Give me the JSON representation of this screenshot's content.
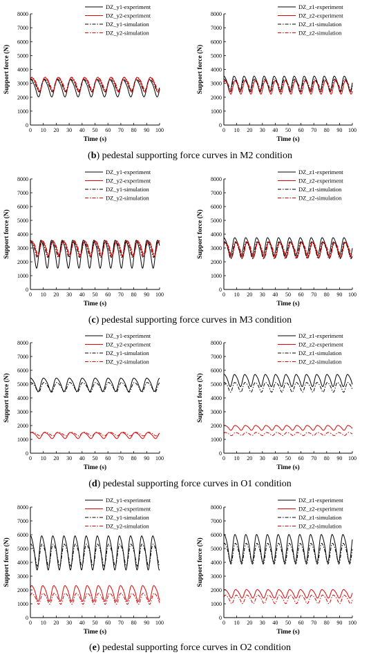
{
  "chart_data": [
    {
      "type": "line",
      "panel": "b-y",
      "ylabel": "Support force (N)",
      "xlabel": "Time (s)",
      "xlim": [
        0,
        100
      ],
      "ylim": [
        0,
        8000
      ],
      "xticks": [
        0,
        10,
        20,
        30,
        40,
        50,
        60,
        70,
        80,
        90,
        100
      ],
      "yticks": [
        0,
        1000,
        2000,
        3000,
        4000,
        5000,
        6000,
        7000,
        8000
      ],
      "legend_position": "top-right",
      "series": [
        {
          "name": "DZ_y1-experiment",
          "color": "#000000",
          "dash": "solid",
          "mean": 2700,
          "amp": 700,
          "period": 10.2,
          "phase": 1.0
        },
        {
          "name": "DZ_y2-experiment",
          "color": "#e00000",
          "dash": "solid",
          "mean": 2950,
          "amp": 600,
          "period": 10.2,
          "phase": 0.6
        },
        {
          "name": "DZ_y1-simulation",
          "color": "#000000",
          "dash": "dashdot",
          "mean": 2900,
          "amp": 500,
          "period": 10.2,
          "phase": 0.8
        },
        {
          "name": "DZ_y2-simulation",
          "color": "#e00000",
          "dash": "dashdot",
          "mean": 3000,
          "amp": 550,
          "period": 10.2,
          "phase": 0.4
        }
      ]
    },
    {
      "type": "line",
      "panel": "b-z",
      "ylabel": "Support force (N)",
      "xlabel": "Time (s)",
      "xlim": [
        0,
        100
      ],
      "ylim": [
        0,
        8000
      ],
      "xticks": [
        0,
        10,
        20,
        30,
        40,
        50,
        60,
        70,
        80,
        90,
        100
      ],
      "yticks": [
        0,
        1000,
        2000,
        3000,
        4000,
        5000,
        6000,
        7000,
        8000
      ],
      "legend_position": "top-right",
      "series": [
        {
          "name": "DZ_z1-experiment",
          "color": "#000000",
          "dash": "solid",
          "mean": 3000,
          "amp": 650,
          "period": 7.8,
          "phase": 1.1
        },
        {
          "name": "DZ_z2-experiment",
          "color": "#e00000",
          "dash": "solid",
          "mean": 2750,
          "amp": 550,
          "period": 7.8,
          "phase": 0.5
        },
        {
          "name": "DZ_z1-simulation",
          "color": "#000000",
          "dash": "dashdot",
          "mean": 2900,
          "amp": 500,
          "period": 7.8,
          "phase": 0.9
        },
        {
          "name": "DZ_z2-simulation",
          "color": "#e00000",
          "dash": "dashdot",
          "mean": 2850,
          "amp": 450,
          "period": 7.8,
          "phase": 0.3
        }
      ]
    },
    {
      "type": "line",
      "panel": "c-y",
      "ylabel": "Support force (N)",
      "xlabel": "Time (s)",
      "xlim": [
        0,
        100
      ],
      "ylim": [
        0,
        8000
      ],
      "xticks": [
        0,
        10,
        20,
        30,
        40,
        50,
        60,
        70,
        80,
        90,
        100
      ],
      "yticks": [
        0,
        1000,
        2000,
        3000,
        4000,
        5000,
        6000,
        7000,
        8000
      ],
      "legend_position": "top-right",
      "series": [
        {
          "name": "DZ_y1-experiment",
          "color": "#000000",
          "dash": "solid",
          "mean": 2650,
          "amp": 1150,
          "period": 8.2,
          "phase": 1.2
        },
        {
          "name": "DZ_y2-experiment",
          "color": "#e00000",
          "dash": "solid",
          "mean": 3000,
          "amp": 650,
          "period": 8.2,
          "phase": 0.5
        },
        {
          "name": "DZ_y1-simulation",
          "color": "#000000",
          "dash": "dashdot",
          "mean": 2950,
          "amp": 650,
          "period": 8.2,
          "phase": 0.9
        },
        {
          "name": "DZ_y2-simulation",
          "color": "#e00000",
          "dash": "dashdot",
          "mean": 3050,
          "amp": 600,
          "period": 8.2,
          "phase": 0.3
        }
      ]
    },
    {
      "type": "line",
      "panel": "c-z",
      "ylabel": "Support force (N)",
      "xlabel": "Time (s)",
      "xlim": [
        0,
        100
      ],
      "ylim": [
        0,
        8000
      ],
      "xticks": [
        0,
        10,
        20,
        30,
        40,
        50,
        60,
        70,
        80,
        90,
        100
      ],
      "yticks": [
        0,
        1000,
        2000,
        3000,
        4000,
        5000,
        6000,
        7000,
        8000
      ],
      "legend_position": "top-right",
      "series": [
        {
          "name": "DZ_z1-experiment",
          "color": "#000000",
          "dash": "solid",
          "mean": 3150,
          "amp": 750,
          "period": 8.5,
          "phase": 1.2
        },
        {
          "name": "DZ_z2-experiment",
          "color": "#e00000",
          "dash": "solid",
          "mean": 2900,
          "amp": 650,
          "period": 8.5,
          "phase": 0.6
        },
        {
          "name": "DZ_z1-simulation",
          "color": "#000000",
          "dash": "dashdot",
          "mean": 2900,
          "amp": 700,
          "period": 8.5,
          "phase": 0.9
        },
        {
          "name": "DZ_z2-simulation",
          "color": "#e00000",
          "dash": "dashdot",
          "mean": 2950,
          "amp": 600,
          "period": 8.5,
          "phase": 0.3
        }
      ]
    },
    {
      "type": "line",
      "panel": "d-y",
      "ylabel": "Support force (N)",
      "xlabel": "Time (s)",
      "xlim": [
        0,
        100
      ],
      "ylim": [
        0,
        8000
      ],
      "xticks": [
        0,
        10,
        20,
        30,
        40,
        50,
        60,
        70,
        80,
        90,
        100
      ],
      "yticks": [
        0,
        1000,
        2000,
        3000,
        4000,
        5000,
        6000,
        7000,
        8000
      ],
      "legend_position": "top-right",
      "series": [
        {
          "name": "DZ_y1-experiment",
          "color": "#000000",
          "dash": "solid",
          "mean": 5000,
          "amp": 550,
          "period": 10,
          "phase": 1.1
        },
        {
          "name": "DZ_y2-experiment",
          "color": "#e00000",
          "dash": "solid",
          "mean": 1300,
          "amp": 250,
          "period": 10,
          "phase": 0.6
        },
        {
          "name": "DZ_y1-simulation",
          "color": "#000000",
          "dash": "dashdot",
          "mean": 4800,
          "amp": 400,
          "period": 10,
          "phase": 0.9
        },
        {
          "name": "DZ_y2-simulation",
          "color": "#e00000",
          "dash": "dashdot",
          "mean": 1400,
          "amp": 150,
          "period": 10,
          "phase": 0.3
        }
      ]
    },
    {
      "type": "line",
      "panel": "d-z",
      "ylabel": "Support force (N)",
      "xlabel": "Time (s)",
      "xlim": [
        0,
        100
      ],
      "ylim": [
        0,
        8000
      ],
      "xticks": [
        0,
        10,
        20,
        30,
        40,
        50,
        60,
        70,
        80,
        90,
        100
      ],
      "yticks": [
        0,
        1000,
        2000,
        3000,
        4000,
        5000,
        6000,
        7000,
        8000
      ],
      "legend_position": "top-right",
      "series": [
        {
          "name": "DZ_z1-experiment",
          "color": "#000000",
          "dash": "solid",
          "mean": 5300,
          "amp": 500,
          "period": 8,
          "phase": 1.0
        },
        {
          "name": "DZ_z2-experiment",
          "color": "#e00000",
          "dash": "solid",
          "mean": 1850,
          "amp": 200,
          "period": 8,
          "phase": 0.6
        },
        {
          "name": "DZ_z1-simulation",
          "color": "#000000",
          "dash": "dashdot",
          "mean": 4800,
          "amp": 400,
          "period": 8,
          "phase": 0.8
        },
        {
          "name": "DZ_z2-simulation",
          "color": "#e00000",
          "dash": "dashdot",
          "mean": 1400,
          "amp": 130,
          "period": 8,
          "phase": 0.3
        }
      ]
    },
    {
      "type": "line",
      "panel": "e-y",
      "ylabel": "Support force (N)",
      "xlabel": "Time (s)",
      "xlim": [
        0,
        100
      ],
      "ylim": [
        0,
        8000
      ],
      "xticks": [
        0,
        10,
        20,
        30,
        40,
        50,
        60,
        70,
        80,
        90,
        100
      ],
      "yticks": [
        0,
        1000,
        2000,
        3000,
        4000,
        5000,
        6000,
        7000,
        8000
      ],
      "legend_position": "top-right",
      "series": [
        {
          "name": "DZ_y1-experiment",
          "color": "#000000",
          "dash": "solid",
          "mean": 4800,
          "amp": 1400,
          "period": 8.6,
          "phase": 1.1
        },
        {
          "name": "DZ_y2-experiment",
          "color": "#e00000",
          "dash": "solid",
          "mean": 1800,
          "amp": 650,
          "period": 8.6,
          "phase": 0.5
        },
        {
          "name": "DZ_y1-simulation",
          "color": "#000000",
          "dash": "dashdot",
          "mean": 4600,
          "amp": 900,
          "period": 8.6,
          "phase": 0.9
        },
        {
          "name": "DZ_y2-simulation",
          "color": "#e00000",
          "dash": "dashdot",
          "mean": 1400,
          "amp": 450,
          "period": 8.6,
          "phase": 0.3
        }
      ]
    },
    {
      "type": "line",
      "panel": "e-z",
      "ylabel": "Support force (N)",
      "xlabel": "Time (s)",
      "xlim": [
        0,
        100
      ],
      "ylim": [
        0,
        8000
      ],
      "xticks": [
        0,
        10,
        20,
        30,
        40,
        50,
        60,
        70,
        80,
        90,
        100
      ],
      "yticks": [
        0,
        1000,
        2000,
        3000,
        4000,
        5000,
        6000,
        7000,
        8000
      ],
      "legend_position": "top-right",
      "series": [
        {
          "name": "DZ_z1-experiment",
          "color": "#000000",
          "dash": "solid",
          "mean": 5100,
          "amp": 1150,
          "period": 8.4,
          "phase": 1.0
        },
        {
          "name": "DZ_z2-experiment",
          "color": "#e00000",
          "dash": "solid",
          "mean": 1750,
          "amp": 350,
          "period": 8.4,
          "phase": 0.6
        },
        {
          "name": "DZ_z1-simulation",
          "color": "#000000",
          "dash": "dashdot",
          "mean": 4700,
          "amp": 850,
          "period": 8.4,
          "phase": 0.8
        },
        {
          "name": "DZ_z2-simulation",
          "color": "#e00000",
          "dash": "dashdot",
          "mean": 1350,
          "amp": 350,
          "period": 8.4,
          "phase": 0.3
        }
      ]
    }
  ],
  "captions": {
    "b": {
      "letter": "b",
      "text": " pedestal supporting force curves in M2 condition"
    },
    "c": {
      "letter": "c",
      "text": " pedestal supporting force curves in M3 condition"
    },
    "d": {
      "letter": "d",
      "text": " pedestal supporting force curves in O1 condition"
    },
    "e": {
      "letter": "e",
      "text": " pedestal supporting force curves in O2 condition"
    }
  }
}
